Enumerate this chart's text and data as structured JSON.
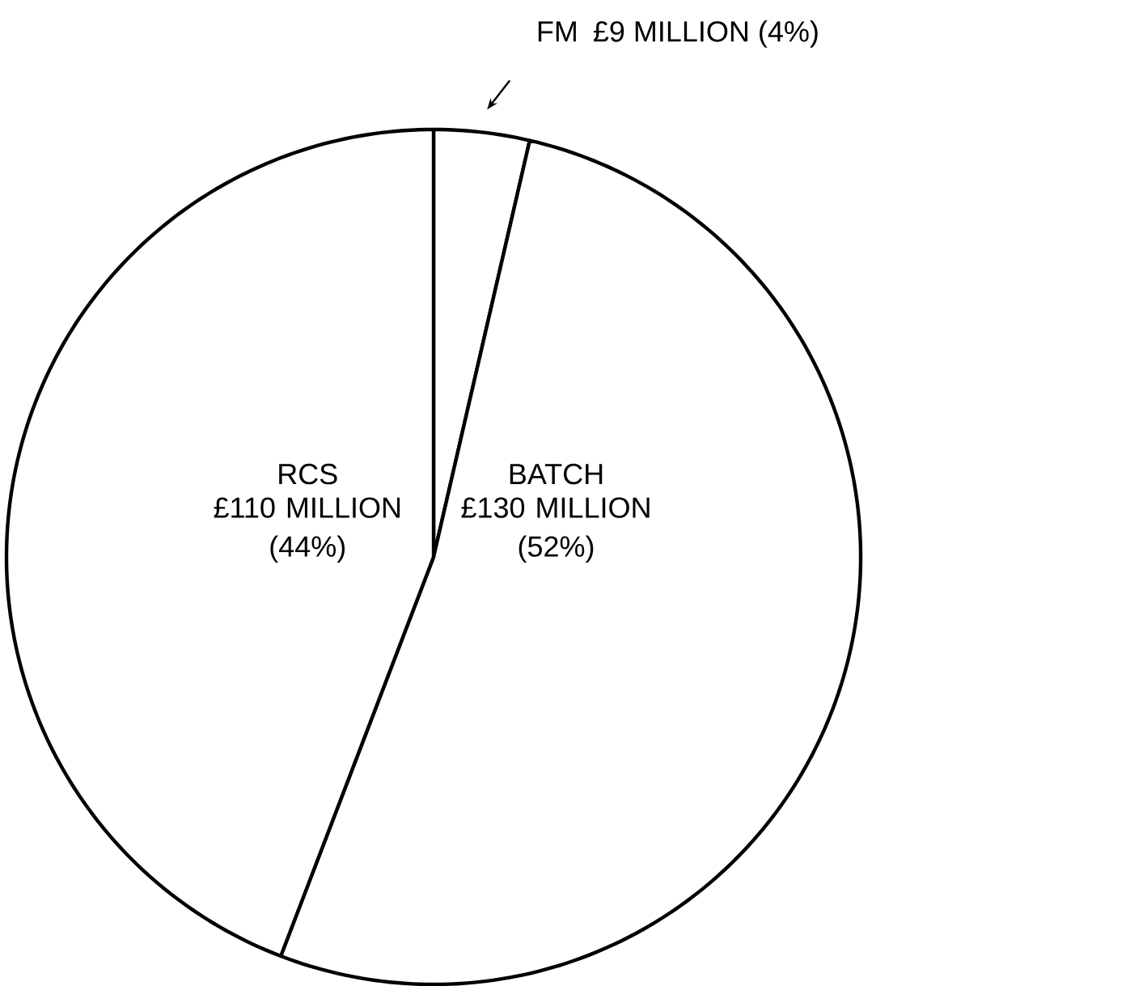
{
  "chart_data": {
    "type": "pie",
    "categories": [
      "FM",
      "BATCH",
      "RCS"
    ],
    "values": [
      9,
      130,
      110
    ],
    "value_labels": [
      "£9 MILLION (4%)",
      "£130 MILLION (52%)",
      "£110 MILLION (44%)"
    ],
    "colors": [
      "#ffffff",
      "#ffffff",
      "#ffffff"
    ]
  }
}
